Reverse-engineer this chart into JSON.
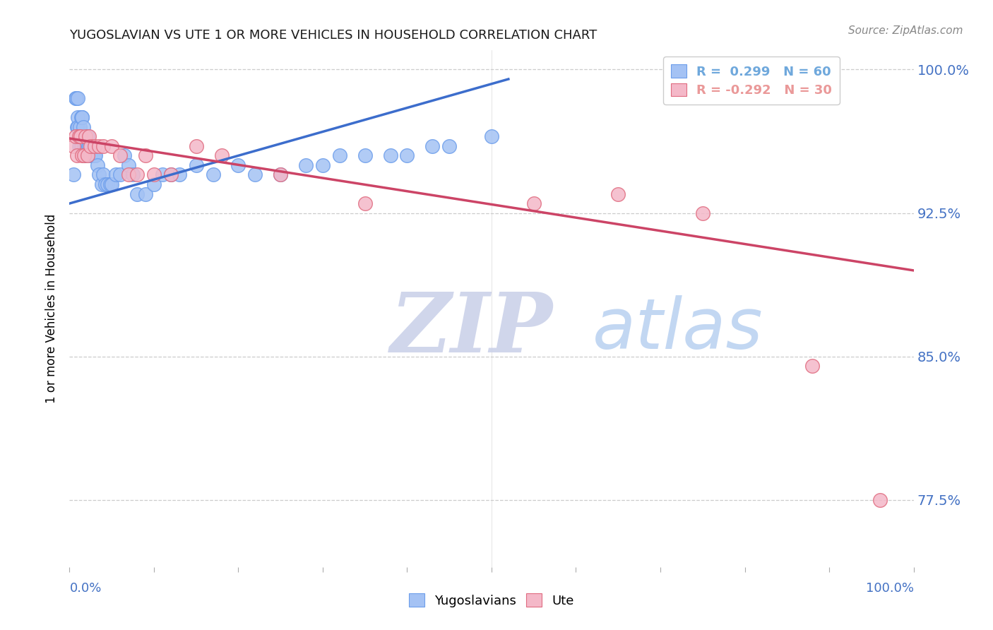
{
  "title": "YUGOSLAVIAN VS UTE 1 OR MORE VEHICLES IN HOUSEHOLD CORRELATION CHART",
  "source": "Source: ZipAtlas.com",
  "ylabel_label": "1 or more Vehicles in Household",
  "y_tick_labels": [
    "77.5%",
    "85.0%",
    "92.5%",
    "100.0%"
  ],
  "y_tick_values": [
    0.775,
    0.85,
    0.925,
    1.0
  ],
  "legend_entries": [
    {
      "label_r": "R =  0.299",
      "label_n": "N = 60",
      "color": "#6fa8dc"
    },
    {
      "label_r": "R = -0.292",
      "label_n": "N = 30",
      "color": "#ea9999"
    }
  ],
  "legend_bottom": [
    "Yugoslavians",
    "Ute"
  ],
  "blue_color": "#a4c2f4",
  "blue_edge_color": "#6d9eeb",
  "pink_color": "#f4b8c8",
  "pink_edge_color": "#e06c80",
  "blue_line_color": "#3c6dcc",
  "pink_line_color": "#cc4466",
  "watermark_zip": "ZIP",
  "watermark_atlas": "atlas",
  "watermark_color_zip": "#c8cfe8",
  "watermark_color_atlas": "#b8d0f0",
  "blue_scatter_x": [
    0.005,
    0.007,
    0.008,
    0.009,
    0.01,
    0.01,
    0.01,
    0.011,
    0.012,
    0.013,
    0.014,
    0.015,
    0.015,
    0.015,
    0.016,
    0.017,
    0.018,
    0.019,
    0.02,
    0.021,
    0.022,
    0.023,
    0.025,
    0.025,
    0.028,
    0.03,
    0.031,
    0.033,
    0.035,
    0.038,
    0.04,
    0.042,
    0.045,
    0.048,
    0.05,
    0.055,
    0.06,
    0.065,
    0.07,
    0.075,
    0.08,
    0.09,
    0.1,
    0.11,
    0.12,
    0.13,
    0.15,
    0.17,
    0.2,
    0.22,
    0.25,
    0.28,
    0.3,
    0.32,
    0.35,
    0.38,
    0.4,
    0.43,
    0.45,
    0.5
  ],
  "blue_scatter_y": [
    0.945,
    0.985,
    0.985,
    0.97,
    0.985,
    0.975,
    0.97,
    0.96,
    0.97,
    0.96,
    0.975,
    0.975,
    0.96,
    0.975,
    0.97,
    0.96,
    0.955,
    0.96,
    0.96,
    0.965,
    0.96,
    0.96,
    0.96,
    0.955,
    0.955,
    0.955,
    0.955,
    0.95,
    0.945,
    0.94,
    0.945,
    0.94,
    0.94,
    0.94,
    0.94,
    0.945,
    0.945,
    0.955,
    0.95,
    0.945,
    0.935,
    0.935,
    0.94,
    0.945,
    0.945,
    0.945,
    0.95,
    0.945,
    0.95,
    0.945,
    0.945,
    0.95,
    0.95,
    0.955,
    0.955,
    0.955,
    0.955,
    0.96,
    0.96,
    0.965
  ],
  "pink_scatter_x": [
    0.005,
    0.007,
    0.009,
    0.011,
    0.013,
    0.015,
    0.017,
    0.019,
    0.021,
    0.023,
    0.025,
    0.03,
    0.035,
    0.04,
    0.05,
    0.06,
    0.07,
    0.08,
    0.09,
    0.1,
    0.12,
    0.15,
    0.18,
    0.25,
    0.35,
    0.55,
    0.65,
    0.75,
    0.88,
    0.96
  ],
  "pink_scatter_y": [
    0.96,
    0.965,
    0.955,
    0.965,
    0.965,
    0.955,
    0.955,
    0.965,
    0.955,
    0.965,
    0.96,
    0.96,
    0.96,
    0.96,
    0.96,
    0.955,
    0.945,
    0.945,
    0.955,
    0.945,
    0.945,
    0.96,
    0.955,
    0.945,
    0.93,
    0.93,
    0.935,
    0.925,
    0.845,
    0.775
  ],
  "blue_trend_x": [
    0.0,
    0.52
  ],
  "blue_trend_y": [
    0.93,
    0.995
  ],
  "pink_trend_x": [
    0.0,
    1.0
  ],
  "pink_trend_y": [
    0.964,
    0.895
  ],
  "ylim": [
    0.74,
    1.01
  ],
  "xlim": [
    0.0,
    1.0
  ],
  "figsize": [
    14.06,
    8.92
  ],
  "dpi": 100
}
